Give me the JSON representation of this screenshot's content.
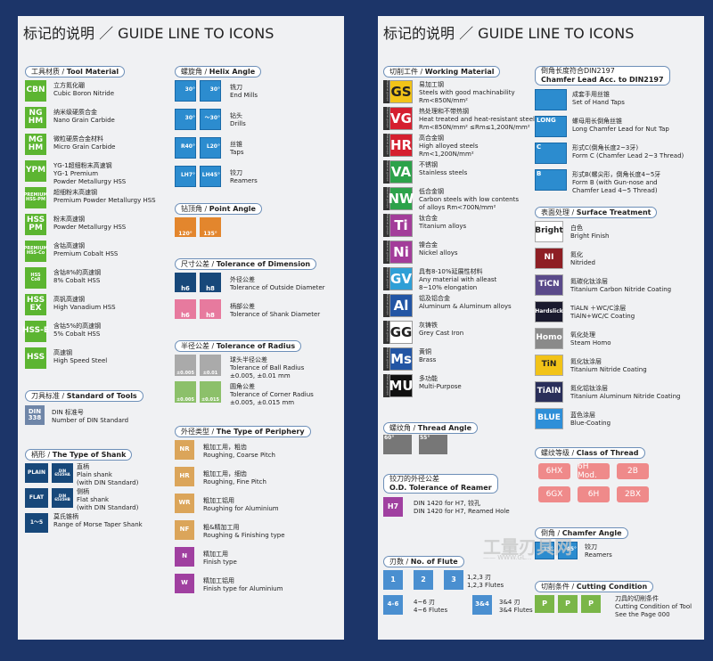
{
  "left": {
    "title": "标记的说明 ／ GUIDE LINE TO ICONS",
    "tool_material": {
      "header_cn": "工具材质",
      "header_en": "Tool Material",
      "items": [
        {
          "icon": "CBN",
          "cn": "立方氮化硼",
          "en": "Cubic Boron Nitride"
        },
        {
          "icon": "NG\nHM",
          "cn": "纳米级硬质合金",
          "en": "Nano Grain Carbide"
        },
        {
          "icon": "MG\nHM",
          "cn": "微粒硬质合金材料",
          "en": "Micro Grain Carbide"
        },
        {
          "icon": "YPM",
          "cn": "YG-1超细粉末高速钢",
          "en": "YG-1 Premium",
          "en2": "Powder Metallurgy HSS"
        },
        {
          "icon": "PREMIUM\nHSS-PM",
          "cn": "超细粉末高速钢",
          "en": "Premium Powder Metallurgy HSS"
        },
        {
          "icon": "HSS\nPM",
          "cn": "粉末高速钢",
          "en": "Powder Metallurgy HSS"
        },
        {
          "icon": "PREMIUM\nHSS-Co",
          "cn": "含钴高速钢",
          "en": "Premium Cobalt HSS"
        },
        {
          "icon": "HSS\nCo8",
          "cn": "含钴8%的高速钢",
          "en": "8% Cobalt HSS"
        },
        {
          "icon": "HSS\nEX",
          "cn": "高钒高速钢",
          "en": "High Vanadium HSS"
        },
        {
          "icon": "HSS-E",
          "cn": "含钴5%的高速钢",
          "en": "5% Cobalt HSS"
        },
        {
          "icon": "HSS",
          "cn": "高速钢",
          "en": "High Speed Steel"
        }
      ]
    },
    "standard": {
      "header_cn": "刀具标准",
      "header_en": "Standard of Tools",
      "icon": "DIN\n338",
      "cn": "DIN 标准号",
      "en": "Number of DIN Standard"
    },
    "shank": {
      "header_cn": "柄形",
      "header_en": "The Type of Shank",
      "items": [
        {
          "icon": "PLAIN",
          "sub": "DIN\n6535HA",
          "cn": "直柄",
          "en": "Plain shank",
          "en2": "(with DIN Standard)"
        },
        {
          "icon": "FLAT",
          "sub": "DIN\n6535HB",
          "cn": "侧柄",
          "en": "Flat shank",
          "en2": "(with DIN Standard)"
        },
        {
          "icon": "1～5",
          "cn": "莫氏锥柄",
          "en": "Range of Morse Taper Shank"
        }
      ]
    },
    "helix": {
      "header_cn": "螺旋角",
      "header_en": "Helix Angle",
      "rows": [
        {
          "a": "30°",
          "b": "30°",
          "cn": "铣刀",
          "en": "End Mills"
        },
        {
          "a": "30°",
          "b": "～30°",
          "cn": "钻头",
          "en": "Drills"
        },
        {
          "a": "R40°",
          "b": "L20°",
          "cn": "丝锥",
          "en": "Taps"
        },
        {
          "a": "LH7°",
          "b": "LH45°",
          "cn": "铰刀",
          "en": "Reamers"
        }
      ]
    },
    "point": {
      "header_cn": "钻顶角",
      "header_en": "Point Angle",
      "a": "120°",
      "b": "135°"
    },
    "tol_dim": {
      "header_cn": "尺寸公差",
      "header_en": "Tolerance of Dimension",
      "rows": [
        {
          "a": "h6",
          "b": "h8",
          "cn": "外径公差",
          "en": "Tolerance of Outside Diameter"
        },
        {
          "a": "h6",
          "b": "h8",
          "cn": "柄部公差",
          "en": "Tolerance of Shank Diameter"
        }
      ]
    },
    "tol_rad": {
      "header_cn": "半径公差",
      "header_en": "Tolerance of Radius",
      "rows": [
        {
          "a": "±0.005",
          "b": "±0.01",
          "cn": "球头半径公差",
          "en": "Tolerance of Ball Radius",
          "en2": "±0.005, ±0.01 mm"
        },
        {
          "a": "±0.005",
          "b": "±0.015",
          "cn": "圆角公差",
          "en": "Tolerance of Corner Radius",
          "en2": "±0.005, ±0.015 mm"
        }
      ]
    },
    "periphery": {
      "header_cn": "外径类型",
      "header_en": "The Type of Periphery",
      "items": [
        {
          "icon": "NR",
          "cn": "粗加工用，粗齿",
          "en": "Roughing, Coarse Pitch"
        },
        {
          "icon": "HR",
          "cn": "粗加工用，细齿",
          "en": "Roughing, Fine Pitch"
        },
        {
          "icon": "WR",
          "cn": "粗加工铝用",
          "en": "Roughing for Aluminium"
        },
        {
          "icon": "NF",
          "cn": "粗&精加工用",
          "en": "Roughing & Finishing type"
        },
        {
          "icon": "N",
          "cn": "精加工用",
          "en": "Finish type"
        },
        {
          "icon": "W",
          "cn": "精加工铝用",
          "en": "Finish type for Aluminium"
        }
      ]
    }
  },
  "right": {
    "title": "标记的说明 ／ GUIDE LINE TO ICONS",
    "work": {
      "header_cn": "切削工件",
      "header_en": "Working Material",
      "side": "Material groups",
      "items": [
        {
          "g": "GS",
          "color": "#f2c318",
          "fg": "#222",
          "cn": "易加工钢",
          "en": "Steels with good machinability",
          "en2": "Rm<850N/mm²"
        },
        {
          "g": "VG",
          "color": "#d51f2f",
          "fg": "#fff",
          "cn": "热处理和不带热钢",
          "en": "Heat treated and heat-resistant steels",
          "en2": "Rm<850N/mm² ≤Rm≤1,200N/mm²"
        },
        {
          "g": "HR",
          "color": "#d51f2f",
          "fg": "#fff",
          "cn": "高合金钢",
          "en": "High alloyed steels",
          "en2": "Rm<1,200N/mm²"
        },
        {
          "g": "VA",
          "color": "#2ca24a",
          "fg": "#fff",
          "cn": "不锈钢",
          "en": "Stainless steels"
        },
        {
          "g": "NW",
          "color": "#2ca24a",
          "fg": "#fff",
          "cn": "低合金钢",
          "en": "Carbon steels with low contents",
          "en2": "of alloys Rm<700N/mm²"
        },
        {
          "g": "Ti",
          "color": "#a33d9a",
          "fg": "#fff",
          "cn": "钛合金",
          "en": "Titanium alloys"
        },
        {
          "g": "Ni",
          "color": "#a33d9a",
          "fg": "#fff",
          "cn": "镍合金",
          "en": "Nickel alloys"
        },
        {
          "g": "GV",
          "color": "#2e9fd6",
          "fg": "#fff",
          "cn": "具有8-10%延展性材料",
          "en": "Any material with alleast",
          "en2": "8~10% elongation"
        },
        {
          "g": "Al",
          "color": "#2255a4",
          "fg": "#fff",
          "cn": "铝及铝合金",
          "en": "Aluminum & Aluminum alloys"
        },
        {
          "g": "GG",
          "color": "#ffffff",
          "fg": "#222",
          "cn": "灰铸铁",
          "en": "Grey Cast Iron"
        },
        {
          "g": "Ms",
          "color": "#2255a4",
          "fg": "#fff",
          "cn": "黄铜",
          "en": "Brass"
        },
        {
          "g": "MU",
          "color": "#111111",
          "fg": "#fff",
          "cn": "多功能",
          "en": "Multi-Purpose"
        }
      ]
    },
    "thread": {
      "header_cn": "螺纹角",
      "header_en": "Thread Angle",
      "a": "60°",
      "b": "55°"
    },
    "od": {
      "header_cn": "铰刀的外径公差",
      "header_en": "O.D. Tolerance of Reamer",
      "icon": "H7",
      "en": "DIN 1420 for H7, 铰孔",
      "en2": "DIN 1420 for H7, Reamed Hole"
    },
    "flute": {
      "header_cn": "刃数",
      "header_en": "No. of Flute",
      "a": [
        "1",
        "2",
        "3"
      ],
      "a_cn": "1,2,3 刃",
      "a_en": "1,2,3 Flutes",
      "b": "4-6",
      "b_cn": "4~6 刃",
      "b_en": "4~6 Flutes",
      "c": "3&4",
      "c_cn": "3&4 刃",
      "c_en": "3&4 Flutes"
    },
    "chamfer": {
      "header_cn": "倒角长度符合",
      "header_cn2": "DIN2197",
      "header_en": "Chamfer Lead Acc. to DIN2197",
      "items": [
        {
          "icon": "",
          "cn": "成套手用丝锥",
          "en": "Set of Hand Taps"
        },
        {
          "icon": "LONG",
          "cn": "螺母用长倒角丝锥",
          "en": "Long Chamfer Lead for Nut Tap"
        },
        {
          "icon": "C",
          "cn": "形式C(倒角长度2~3牙)",
          "en": "Form C (Chamfer Lead 2~3 Thread)"
        },
        {
          "icon": "B",
          "cn": "形式B(螺尖形，倒角长度4~5牙",
          "en": "Form B (with Gun-nose and",
          "en2": "Chamfer Lead 4~5 Thread)"
        }
      ]
    },
    "surface": {
      "header_cn": "表面处理",
      "header_en": "Surface Treatment",
      "items": [
        {
          "icon": "Bright",
          "color": "#ffffff",
          "fg": "#222",
          "cn": "白色",
          "en": "Bright Finish"
        },
        {
          "icon": "NI",
          "color": "#8e1e24",
          "fg": "#fff",
          "cn": "氮化",
          "en": "Nitrided"
        },
        {
          "icon": "TiCN",
          "color": "#5a4a8a",
          "fg": "#fff",
          "cn": "氮碳化钛涂层",
          "en": "Titanium Carbon Nitride Coating"
        },
        {
          "icon": "Hardslick",
          "color": "#1a1a2e",
          "fg": "#fff",
          "cn": "TiALN ＋WC/C涂层",
          "en": "TiAlN+WC/C Coating"
        },
        {
          "icon": "Homo",
          "color": "#8a8a8a",
          "fg": "#fff",
          "cn": "氧化处理",
          "en": "Steam Homo"
        },
        {
          "icon": "TiN",
          "color": "#f2c318",
          "fg": "#222",
          "cn": "氮化钛涂层",
          "en": "Titanium Nitride Coating"
        },
        {
          "icon": "TiAlN",
          "color": "#2a2f5a",
          "fg": "#fff",
          "cn": "氮化铝钛涂层",
          "en": "Titanium Aluminum Nitride Coating"
        },
        {
          "icon": "BLUE",
          "color": "#2e8fd8",
          "fg": "#fff",
          "cn": "蓝色涂层",
          "en": "Blue-Coating"
        }
      ]
    },
    "class": {
      "header_cn": "螺纹等级",
      "header_en": "Class of Thread",
      "items": [
        "6HX",
        "6H Mod.",
        "2B",
        "6GX",
        "6H",
        "2BX"
      ]
    },
    "chamfer_angle": {
      "header_cn": "倒角",
      "header_en": "Chamfer Angle",
      "a": "15°",
      "b": "45°",
      "cn": "铰刀",
      "en": "Reamers"
    },
    "cutting": {
      "header_cn": "切削条件",
      "header_en": "Cutting Condition",
      "cn": "刀具的切削条件",
      "en": "Cutting Condition of Tool",
      "en2": "See the Page 000"
    },
    "watermark": "工量刃具网",
    "watermark2": "—— WWW.GL..."
  }
}
